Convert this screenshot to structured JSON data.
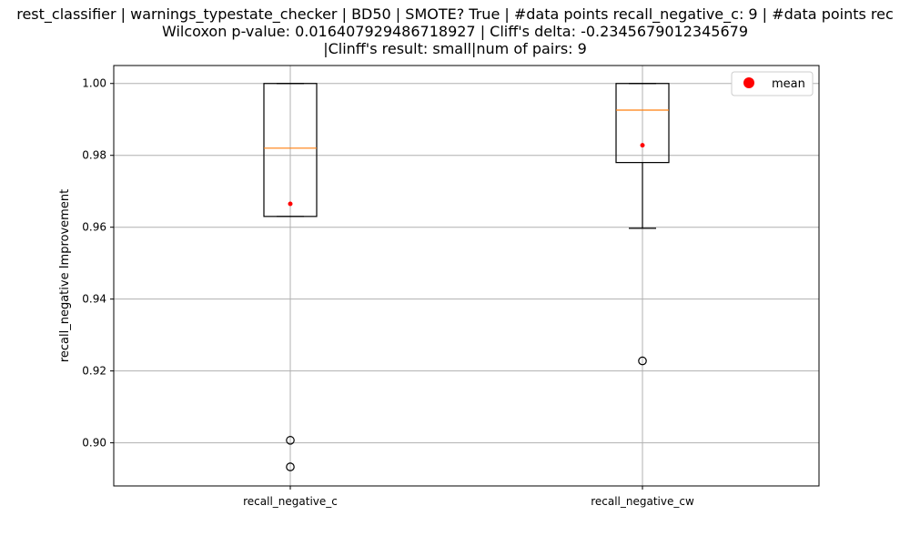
{
  "chart_data": {
    "type": "box",
    "title_lines": [
      "rest_classifier | warnings_typestate_checker | BD50 | SMOTE? True | #data points recall_negative_c: 9 | #data points rec",
      "Wilcoxon p-value: 0.016407929486718927 | Cliff's delta: -0.2345679012345679",
      "|Clinff's result: small|num of pairs: 9"
    ],
    "ylabel": "recall_negative Improvement",
    "xlabel": "",
    "ylim": [
      0.888,
      1.005
    ],
    "yticks": [
      0.9,
      0.92,
      0.94,
      0.96,
      0.98,
      1.0
    ],
    "ytick_labels": [
      "0.90",
      "0.92",
      "0.94",
      "0.96",
      "0.98",
      "1.00"
    ],
    "categories": [
      "recall_negative_c",
      "recall_negative_cw"
    ],
    "boxes": [
      {
        "category": "recall_negative_c",
        "whisker_low": 0.963,
        "q1": 0.963,
        "median": 0.982,
        "q3": 1.0,
        "whisker_high": 1.0,
        "mean": 0.9665,
        "outliers": [
          0.9007,
          0.8933
        ]
      },
      {
        "category": "recall_negative_cw",
        "whisker_low": 0.9597,
        "q1": 0.978,
        "median": 0.9926,
        "q3": 1.0,
        "whisker_high": 1.0,
        "mean": 0.9828,
        "outliers": [
          0.9228
        ]
      }
    ],
    "legend": {
      "position": "top-right",
      "entries": [
        "mean"
      ]
    },
    "grid": true,
    "colors": {
      "box": "#000000",
      "median": "#ff7f0e",
      "mean": "#ff0000",
      "grid": "#b0b0b0"
    }
  }
}
